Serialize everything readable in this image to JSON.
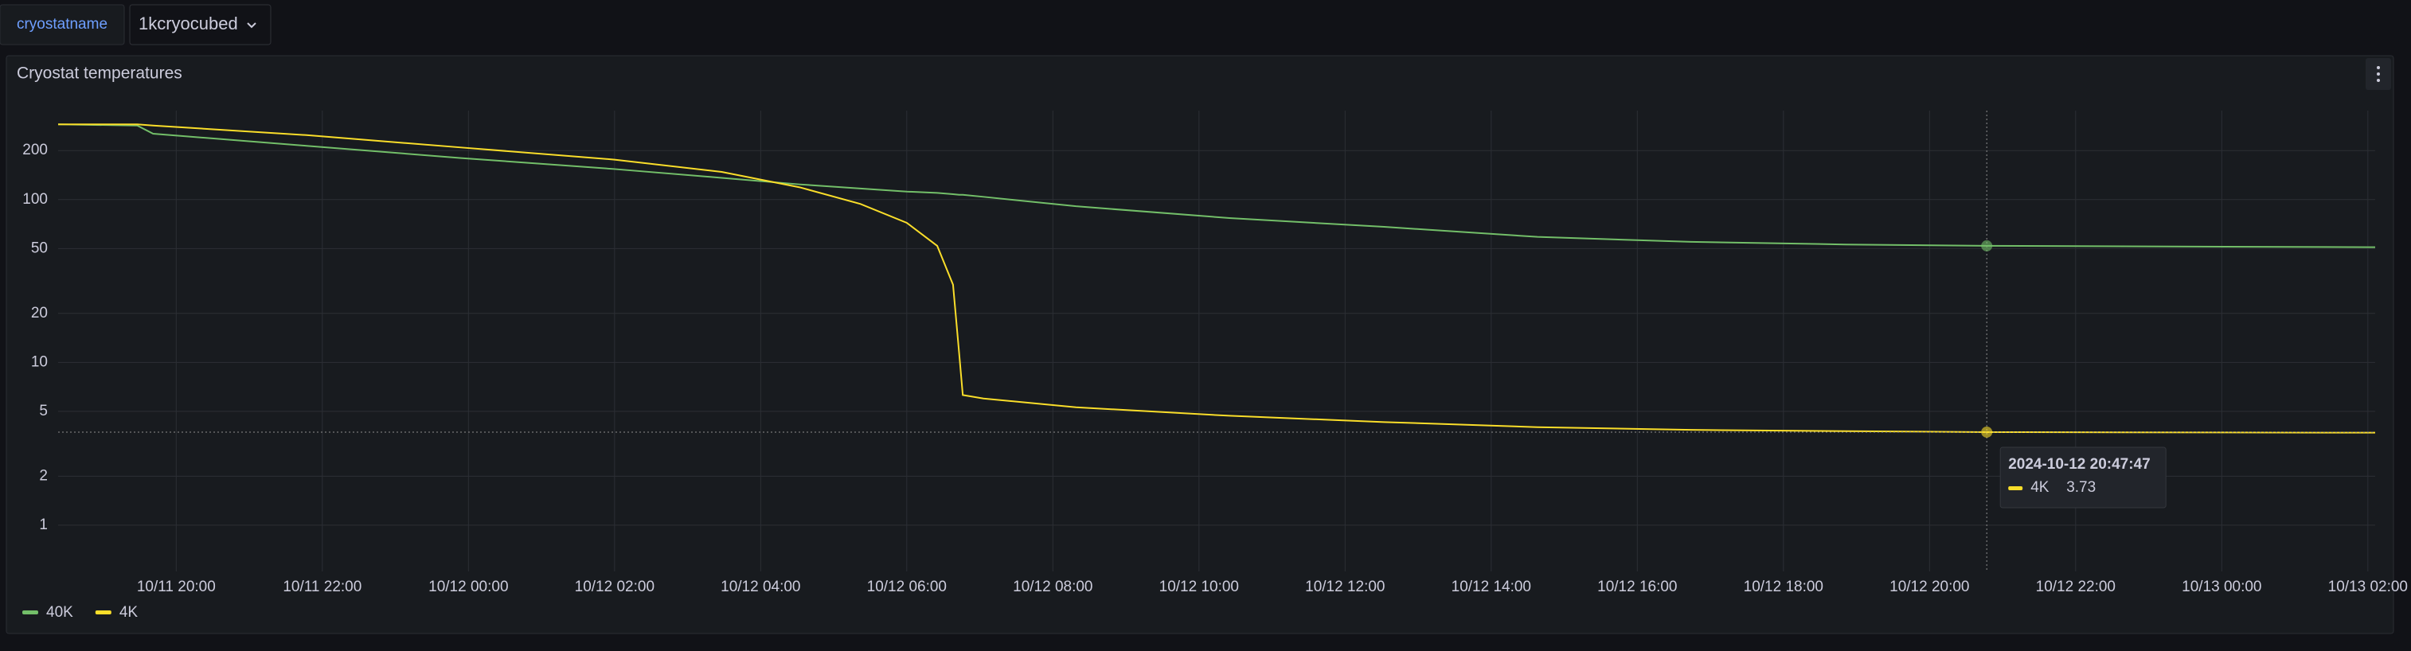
{
  "variable": {
    "label": "cryostatname",
    "value": "1kcryocubed"
  },
  "chart_data": {
    "type": "line",
    "title": "Cryostat temperatures",
    "x": [
      "10/11 18:23",
      "10/11 19:28",
      "10/11 19:41",
      "10/11 21:47",
      "10/11 23:54",
      "10/12 02:00",
      "10/12 03:28",
      "10/12 04:32",
      "10/12 05:22",
      "10/12 06:00",
      "10/12 06:25",
      "10/12 06:38",
      "10/12 06:43",
      "10/12 06:46",
      "10/12 07:03",
      "10/12 08:19",
      "10/12 10:25",
      "10/12 12:32",
      "10/12 14:38",
      "10/12 16:44",
      "10/12 18:51",
      "10/12 20:47",
      "10/13 02:06"
    ],
    "series": [
      {
        "name": "40K",
        "color": "#73bf69",
        "values": [
          290,
          285,
          254,
          214,
          180,
          154,
          136,
          124,
          117,
          112,
          110,
          108,
          107,
          107,
          104,
          91,
          77,
          68,
          59,
          55,
          53,
          52,
          51
        ]
      },
      {
        "name": "4K",
        "color": "#fade2a",
        "values": [
          290,
          290,
          285,
          249,
          209,
          176,
          148,
          119,
          94,
          72,
          52,
          30,
          11.4,
          6.3,
          6.0,
          5.3,
          4.7,
          4.3,
          4.0,
          3.85,
          3.78,
          3.73,
          3.7
        ]
      }
    ],
    "xlim": [
      "10/11 18:23",
      "10/13 02:06"
    ],
    "xticks": [
      "10/11 20:00",
      "10/11 22:00",
      "10/12 00:00",
      "10/12 02:00",
      "10/12 04:00",
      "10/12 06:00",
      "10/12 08:00",
      "10/12 10:00",
      "10/12 12:00",
      "10/12 14:00",
      "10/12 16:00",
      "10/12 18:00",
      "10/12 20:00",
      "10/12 22:00",
      "10/13 00:00",
      "10/13 02:00"
    ],
    "ylim": [
      0.52,
      352
    ],
    "yticks": [
      1,
      2,
      5,
      10,
      20,
      50,
      100,
      200
    ],
    "log_scale": true,
    "grid": true,
    "legend": "bottom-left"
  },
  "tooltip": {
    "time": "2024-10-12 20:47:47",
    "series": "4K",
    "value": "3.73"
  }
}
